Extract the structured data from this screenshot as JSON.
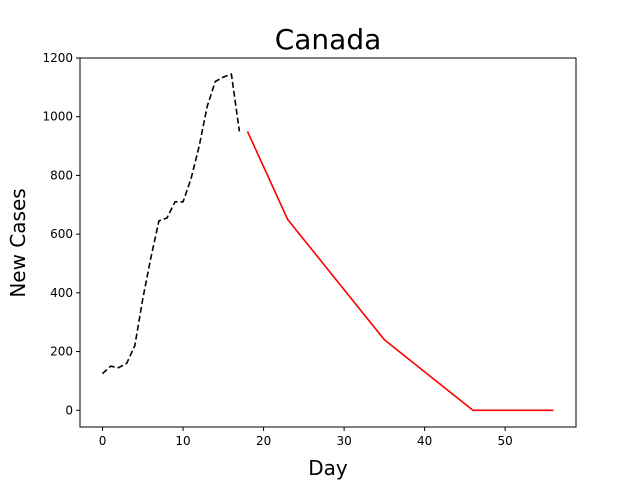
{
  "chart_data": {
    "type": "line",
    "title": "Canada",
    "xlabel": "Day",
    "ylabel": "New Cases",
    "xlim": [
      -2.8,
      58.8
    ],
    "ylim": [
      -57,
      1200
    ],
    "xticks": [
      0,
      10,
      20,
      30,
      40,
      50
    ],
    "yticks": [
      0,
      200,
      400,
      600,
      800,
      1000,
      1200
    ],
    "grid": false,
    "series": [
      {
        "style": "dashed",
        "color": "#000000",
        "points": [
          [
            0,
            125
          ],
          [
            1,
            150
          ],
          [
            2,
            145
          ],
          [
            3,
            160
          ],
          [
            4,
            220
          ],
          [
            5,
            380
          ],
          [
            6,
            520
          ],
          [
            7,
            645
          ],
          [
            8,
            655
          ],
          [
            9,
            710
          ],
          [
            10,
            710
          ],
          [
            11,
            790
          ],
          [
            12,
            900
          ],
          [
            13,
            1035
          ],
          [
            14,
            1120
          ],
          [
            15,
            1135
          ],
          [
            16,
            1145
          ],
          [
            17,
            950
          ]
        ]
      },
      {
        "style": "solid",
        "color": "#ff0000",
        "points": [
          [
            18,
            950
          ],
          [
            23,
            650
          ],
          [
            35,
            240
          ],
          [
            46,
            0
          ],
          [
            56,
            0
          ]
        ]
      }
    ]
  }
}
